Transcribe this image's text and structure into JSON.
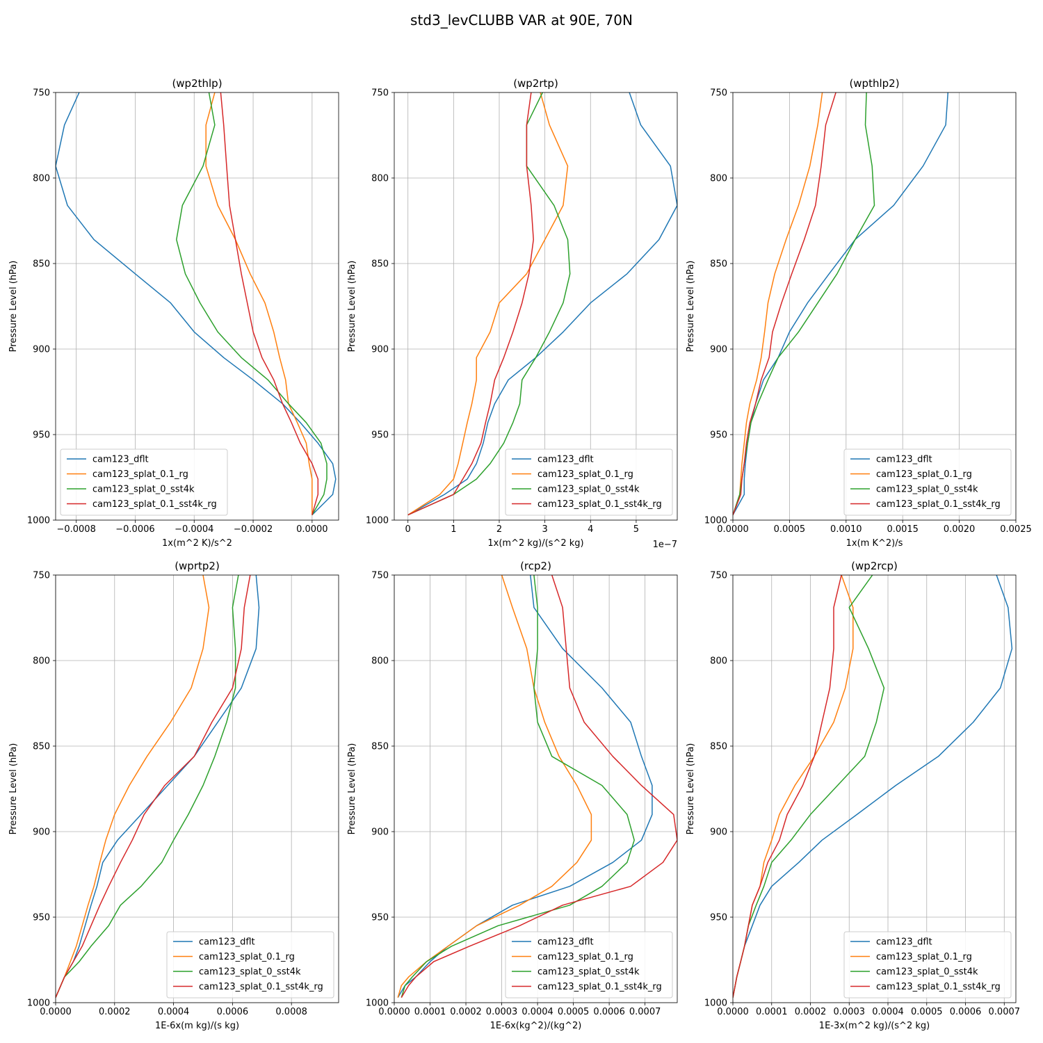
{
  "figure_title": "std3_levCLUBB VAR at 90E, 70N",
  "colors": {
    "cam123_dflt": "#1f77b4",
    "cam123_splat_0.1_rg": "#ff7f0e",
    "cam123_splat_0_sst4k": "#2ca02c",
    "cam123_splat_0.1_sst4k_rg": "#d62728"
  },
  "chart_data": [
    {
      "type": "line",
      "title": "(wp2thlp)",
      "xlabel": "1x(m^2 K)/s^2",
      "ylabel": "Pressure Level (hPa)",
      "xlim": [
        -0.00087,
        9e-05
      ],
      "ylim": [
        1000,
        750
      ],
      "xticks": [
        -0.0008,
        -0.0006,
        -0.0004,
        -0.0002,
        0.0
      ],
      "xtick_labels": [
        "−0.0008",
        "−0.0006",
        "−0.0004",
        "−0.0002",
        "0.0000"
      ],
      "yticks": [
        750,
        800,
        850,
        900,
        950,
        1000
      ],
      "x_offset_text": "",
      "legend": "lower-left",
      "grid": true,
      "levels": [
        997,
        985,
        976,
        967,
        955,
        943,
        932,
        918,
        905,
        890,
        873,
        856,
        836,
        816,
        793,
        769,
        750
      ],
      "series": [
        {
          "name": "cam123_dflt",
          "values": [
            0.0,
            7e-05,
            8e-05,
            7e-05,
            2e-05,
            -4e-05,
            -0.0001,
            -0.0002,
            -0.0003,
            -0.0004,
            -0.00048,
            -0.0006,
            -0.00074,
            -0.00083,
            -0.00087,
            -0.00084,
            -0.00079
          ]
        },
        {
          "name": "cam123_splat_0.1_rg",
          "values": [
            0.0,
            0.0,
            0.0,
            -1e-05,
            -2e-05,
            -5e-05,
            -8e-05,
            -9e-05,
            -0.00011,
            -0.00013,
            -0.00016,
            -0.00021,
            -0.00026,
            -0.00032,
            -0.00036,
            -0.00036,
            -0.00033
          ]
        },
        {
          "name": "cam123_splat_0_sst4k",
          "values": [
            0.0,
            4e-05,
            5e-05,
            5e-05,
            3e-05,
            -2e-05,
            -8e-05,
            -0.00015,
            -0.00024,
            -0.00032,
            -0.00038,
            -0.00043,
            -0.00046,
            -0.00044,
            -0.00037,
            -0.00033,
            -0.00035
          ]
        },
        {
          "name": "cam123_splat_0.1_sst4k_rg",
          "values": [
            0.0,
            2e-05,
            2e-05,
            0.0,
            -4e-05,
            -7e-05,
            -0.0001,
            -0.00013,
            -0.00017,
            -0.0002,
            -0.00022,
            -0.00024,
            -0.00026,
            -0.00028,
            -0.00029,
            -0.0003,
            -0.00031
          ]
        }
      ]
    },
    {
      "type": "line",
      "title": "(wp2rtp)",
      "xlabel": "1x(m^2 kg)/(s^2 kg)",
      "ylabel": "Pressure Level (hPa)",
      "xlim": [
        -3e-08,
        5.9e-07
      ],
      "ylim": [
        1000,
        750
      ],
      "xticks": [
        0.0,
        1e-07,
        2e-07,
        3e-07,
        4e-07,
        5e-07
      ],
      "xtick_labels": [
        "0",
        "1",
        "2",
        "3",
        "4",
        "5"
      ],
      "yticks": [
        750,
        800,
        850,
        900,
        950,
        1000
      ],
      "x_offset_text": "1e−7",
      "legend": "lower-right",
      "grid": true,
      "levels": [
        997,
        985,
        976,
        967,
        955,
        943,
        932,
        918,
        905,
        890,
        873,
        856,
        836,
        816,
        793,
        769,
        750
      ],
      "series": [
        {
          "name": "cam123_dflt",
          "values": [
            0.0,
            8e-08,
            1.3e-07,
            1.5e-07,
            1.65e-07,
            1.75e-07,
            1.9e-07,
            2.2e-07,
            2.8e-07,
            3.4e-07,
            4e-07,
            4.8e-07,
            5.5e-07,
            5.9e-07,
            5.75e-07,
            5.1e-07,
            4.85e-07
          ]
        },
        {
          "name": "cam123_splat_0.1_rg",
          "values": [
            0.0,
            7e-08,
            1e-07,
            1.1e-07,
            1.2e-07,
            1.3e-07,
            1.4e-07,
            1.5e-07,
            1.5e-07,
            1.8e-07,
            2e-07,
            2.6e-07,
            3e-07,
            3.4e-07,
            3.5e-07,
            3.1e-07,
            2.9e-07
          ]
        },
        {
          "name": "cam123_splat_0_sst4k",
          "values": [
            0.0,
            1e-07,
            1.5e-07,
            1.8e-07,
            2.1e-07,
            2.3e-07,
            2.45e-07,
            2.5e-07,
            2.8e-07,
            3.1e-07,
            3.4e-07,
            3.55e-07,
            3.5e-07,
            3.2e-07,
            2.6e-07,
            2.6e-07,
            2.95e-07
          ]
        },
        {
          "name": "cam123_splat_0.1_sst4k_rg",
          "values": [
            0.0,
            1e-07,
            1.2e-07,
            1.4e-07,
            1.6e-07,
            1.7e-07,
            1.8e-07,
            1.9e-07,
            2.1e-07,
            2.3e-07,
            2.5e-07,
            2.65e-07,
            2.75e-07,
            2.7e-07,
            2.6e-07,
            2.6e-07,
            2.7e-07
          ]
        }
      ]
    },
    {
      "type": "line",
      "title": "(wpthlp2)",
      "xlabel": "1x(m K^2)/s",
      "ylabel": "Pressure Level (hPa)",
      "xlim": [
        0.0,
        0.0025
      ],
      "ylim": [
        1000,
        750
      ],
      "xticks": [
        0.0,
        0.0005,
        0.001,
        0.0015,
        0.002,
        0.0025
      ],
      "xtick_labels": [
        "0.0000",
        "0.0005",
        "0.0010",
        "0.0015",
        "0.0020",
        "0.0025"
      ],
      "yticks": [
        750,
        800,
        850,
        900,
        950,
        1000
      ],
      "x_offset_text": "",
      "legend": "lower-right",
      "grid": true,
      "levels": [
        997,
        985,
        976,
        967,
        955,
        943,
        932,
        918,
        905,
        890,
        873,
        856,
        836,
        816,
        793,
        769,
        750
      ],
      "series": [
        {
          "name": "cam123_dflt",
          "values": [
            0.0,
            0.0001,
            0.0001,
            0.00011,
            0.00013,
            0.00016,
            0.0002,
            0.00027,
            0.0004,
            0.0005,
            0.00066,
            0.00085,
            0.00108,
            0.00142,
            0.00168,
            0.00188,
            0.0019
          ]
        },
        {
          "name": "cam123_splat_0.1_rg",
          "values": [
            0.0,
            6e-05,
            7e-05,
            8e-05,
            0.0001,
            0.00012,
            0.00015,
            0.00021,
            0.00025,
            0.00028,
            0.00031,
            0.00037,
            0.00047,
            0.00058,
            0.00068,
            0.00075,
            0.00079
          ]
        },
        {
          "name": "cam123_splat_0_sst4k",
          "values": [
            0.0,
            6e-05,
            8e-05,
            0.0001,
            0.00013,
            0.00016,
            0.00022,
            0.00031,
            0.0004,
            0.00058,
            0.00075,
            0.00092,
            0.00108,
            0.00125,
            0.00123,
            0.00117,
            0.00118
          ]
        },
        {
          "name": "cam123_splat_0.1_sst4k_rg",
          "values": [
            0.0,
            7e-05,
            8e-05,
            0.0001,
            0.00012,
            0.00015,
            0.0002,
            0.00025,
            0.00032,
            0.00035,
            0.00043,
            0.00052,
            0.00063,
            0.00073,
            0.00078,
            0.00082,
            0.00091
          ]
        }
      ]
    },
    {
      "type": "line",
      "title": "(wprtp2)",
      "xlabel": "1E-6x(m kg)/(s kg)",
      "ylabel": "Pressure Level (hPa)",
      "xlim": [
        0.0,
        0.00096
      ],
      "ylim": [
        1000,
        750
      ],
      "xticks": [
        0.0,
        0.0002,
        0.0004,
        0.0006,
        0.0008
      ],
      "xtick_labels": [
        "0.0000",
        "0.0002",
        "0.0004",
        "0.0006",
        "0.0008"
      ],
      "yticks": [
        750,
        800,
        850,
        900,
        950,
        1000
      ],
      "x_offset_text": "",
      "legend": "lower-right",
      "grid": true,
      "levels": [
        997,
        985,
        976,
        967,
        955,
        943,
        932,
        918,
        905,
        890,
        873,
        856,
        836,
        816,
        793,
        769,
        750
      ],
      "series": [
        {
          "name": "cam123_dflt",
          "values": [
            0.0,
            3e-05,
            6e-05,
            8e-05,
            0.0001,
            0.00012,
            0.00014,
            0.00016,
            0.00021,
            0.00029,
            0.00038,
            0.00047,
            0.00055,
            0.00063,
            0.00068,
            0.00069,
            0.00068
          ]
        },
        {
          "name": "cam123_splat_0.1_rg",
          "values": [
            0.0,
            3e-05,
            5e-05,
            7e-05,
            9e-05,
            0.00011,
            0.00013,
            0.00015,
            0.00017,
            0.0002,
            0.00025,
            0.00031,
            0.00039,
            0.00046,
            0.0005,
            0.00052,
            0.0005
          ]
        },
        {
          "name": "cam123_splat_0_sst4k",
          "values": [
            0.0,
            3e-05,
            8e-05,
            0.00012,
            0.00018,
            0.00022,
            0.00029,
            0.00036,
            0.0004,
            0.00045,
            0.0005,
            0.00054,
            0.00058,
            0.00061,
            0.00061,
            0.0006,
            0.00062
          ]
        },
        {
          "name": "cam123_splat_0.1_sst4k_rg",
          "values": [
            0.0,
            3e-05,
            6e-05,
            9e-05,
            0.00012,
            0.00015,
            0.00018,
            0.00022,
            0.00026,
            0.0003,
            0.00037,
            0.00047,
            0.00053,
            0.0006,
            0.00063,
            0.00064,
            0.00066
          ]
        }
      ]
    },
    {
      "type": "line",
      "title": "(rcp2)",
      "xlabel": "1E-6x(kg^2)/(kg^2)",
      "ylabel": "Pressure Level (hPa)",
      "xlim": [
        0.0,
        0.00079
      ],
      "ylim": [
        1000,
        750
      ],
      "xticks": [
        0.0,
        0.0001,
        0.0002,
        0.0003,
        0.0004,
        0.0005,
        0.0006,
        0.0007
      ],
      "xtick_labels": [
        "0.0000",
        "0.0001",
        "0.0002",
        "0.0003",
        "0.0004",
        "0.0005",
        "0.0006",
        "0.0007"
      ],
      "yticks": [
        750,
        800,
        850,
        900,
        950,
        1000
      ],
      "x_offset_text": "",
      "legend": "lower-right",
      "grid": true,
      "levels": [
        997,
        990,
        985,
        976,
        967,
        955,
        943,
        932,
        918,
        905,
        890,
        873,
        856,
        836,
        816,
        793,
        769,
        750
      ],
      "series": [
        {
          "name": "cam123_dflt",
          "values": [
            1e-05,
            3e-05,
            6e-05,
            0.0001,
            0.00015,
            0.00023,
            0.00033,
            0.00049,
            0.00061,
            0.00069,
            0.00072,
            0.00072,
            0.00069,
            0.00066,
            0.00058,
            0.00047,
            0.00039,
            0.00038
          ]
        },
        {
          "name": "cam123_splat_0.1_rg",
          "values": [
            1e-05,
            2e-05,
            4e-05,
            9e-05,
            0.00015,
            0.00023,
            0.00035,
            0.00044,
            0.00051,
            0.00055,
            0.00055,
            0.00051,
            0.00046,
            0.00042,
            0.00039,
            0.00037,
            0.00033,
            0.0003
          ]
        },
        {
          "name": "cam123_splat_0_sst4k",
          "values": [
            2e-05,
            3e-05,
            5e-05,
            9e-05,
            0.00016,
            0.00029,
            0.00049,
            0.00058,
            0.00065,
            0.00067,
            0.00065,
            0.00058,
            0.00044,
            0.0004,
            0.00039,
            0.0004,
            0.0004,
            0.00039
          ]
        },
        {
          "name": "cam123_splat_0.1_sst4k_rg",
          "values": [
            2e-05,
            4e-05,
            6e-05,
            0.00011,
            0.00021,
            0.00035,
            0.00047,
            0.00066,
            0.00075,
            0.00079,
            0.00078,
            0.00069,
            0.00061,
            0.00053,
            0.00049,
            0.00048,
            0.00047,
            0.00044
          ]
        }
      ]
    },
    {
      "type": "line",
      "title": "(wp2rcp)",
      "xlabel": "1E-3x(m^2 kg)/(s^2 kg)",
      "ylabel": "Pressure Level (hPa)",
      "xlim": [
        0.0,
        0.00073
      ],
      "ylim": [
        1000,
        750
      ],
      "xticks": [
        0.0,
        0.0001,
        0.0002,
        0.0003,
        0.0004,
        0.0005,
        0.0006,
        0.0007
      ],
      "xtick_labels": [
        "0.0000",
        "0.0001",
        "0.0002",
        "0.0003",
        "0.0004",
        "0.0005",
        "0.0006",
        "0.0007"
      ],
      "yticks": [
        750,
        800,
        850,
        900,
        950,
        1000
      ],
      "x_offset_text": "",
      "legend": "lower-right",
      "grid": true,
      "levels": [
        997,
        985,
        976,
        967,
        955,
        943,
        932,
        918,
        905,
        890,
        873,
        856,
        836,
        816,
        793,
        769,
        750
      ],
      "series": [
        {
          "name": "cam123_dflt",
          "values": [
            0.0,
            1e-05,
            2e-05,
            3e-05,
            5e-05,
            7e-05,
            0.0001,
            0.00017,
            0.00023,
            0.00032,
            0.00042,
            0.00053,
            0.00062,
            0.00069,
            0.00072,
            0.00071,
            0.00068
          ]
        },
        {
          "name": "cam123_splat_0.1_rg",
          "values": [
            0.0,
            1e-05,
            2e-05,
            3e-05,
            4e-05,
            5e-05,
            7e-05,
            8e-05,
            0.0001,
            0.00012,
            0.00016,
            0.00021,
            0.00026,
            0.00029,
            0.00031,
            0.00031,
            0.00028
          ]
        },
        {
          "name": "cam123_splat_0_sst4k",
          "values": [
            0.0,
            1e-05,
            2e-05,
            3e-05,
            4e-05,
            6e-05,
            8e-05,
            0.0001,
            0.00015,
            0.0002,
            0.00027,
            0.00034,
            0.00037,
            0.00039,
            0.00035,
            0.0003,
            0.00036
          ]
        },
        {
          "name": "cam123_splat_0.1_sst4k_rg",
          "values": [
            0.0,
            1e-05,
            2e-05,
            3e-05,
            4e-05,
            5e-05,
            7e-05,
            9e-05,
            0.00012,
            0.00014,
            0.00018,
            0.00021,
            0.00023,
            0.00025,
            0.00026,
            0.00026,
            0.00028
          ]
        }
      ]
    }
  ]
}
